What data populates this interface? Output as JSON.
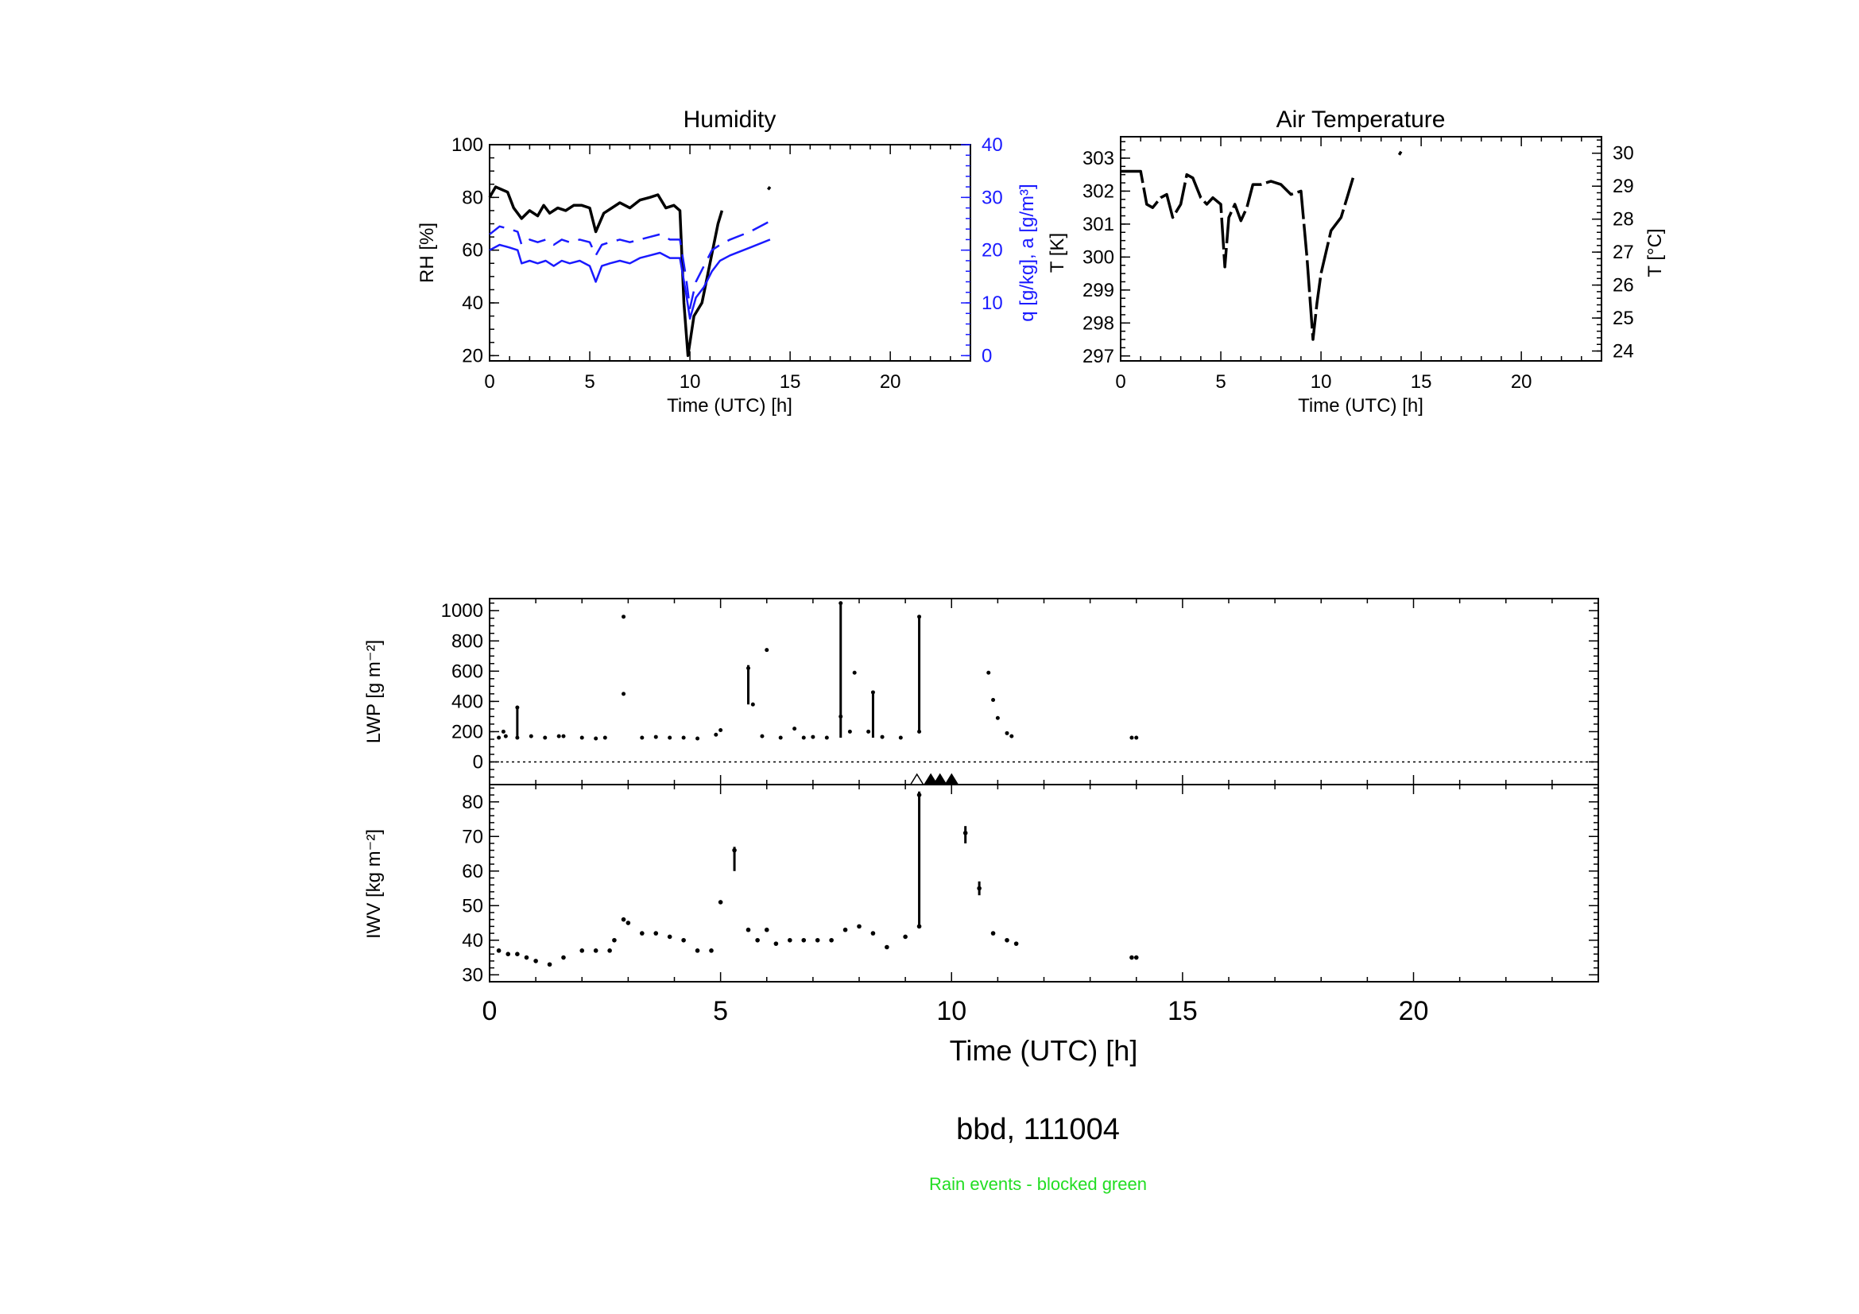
{
  "figure": {
    "caption": "bbd, 111004",
    "note": "Rain events - blocked green"
  },
  "chart_data": [
    {
      "id": "humidity",
      "type": "line",
      "title": "Humidity",
      "xlabel": "Time (UTC) [h]",
      "ylabel": "RH [%]",
      "ylabel_right": "q [g/kg], a [g/m³]",
      "xlim": [
        0,
        24
      ],
      "ylim": [
        18,
        100
      ],
      "ylim_right": [
        0,
        40
      ],
      "x_ticks": [
        0,
        5,
        10,
        15,
        20
      ],
      "y_ticks": [
        20,
        40,
        60,
        80,
        100
      ],
      "y_ticks_right": [
        0,
        10,
        20,
        30,
        40
      ],
      "colors": {
        "rh": "#000000",
        "q": "#1a1aff",
        "a": "#1a1aff"
      },
      "series": [
        {
          "key": "rh",
          "axis": "left",
          "style": "solid-black",
          "x": [
            0,
            0.3,
            0.6,
            0.9,
            1.2,
            1.6,
            2.0,
            2.4,
            2.7,
            3.0,
            3.4,
            3.8,
            4.2,
            4.6,
            5.0,
            5.3,
            5.7,
            6.1,
            6.5,
            7.0,
            7.5,
            8.0,
            8.4,
            8.8,
            9.2,
            9.5,
            9.7,
            9.9,
            10.2,
            10.6,
            11.0,
            11.4,
            11.6
          ],
          "y": [
            80,
            84,
            83,
            82,
            76,
            72,
            75,
            73,
            77,
            74,
            76,
            75,
            77,
            77,
            76,
            67,
            74,
            76,
            78,
            76,
            79,
            80,
            81,
            76,
            77,
            75,
            40,
            20,
            35,
            40,
            55,
            70,
            75
          ]
        },
        {
          "key": "rh_late",
          "axis": "left",
          "style": "solid-black",
          "x": [
            13.9,
            14.0
          ],
          "y": [
            83,
            84
          ]
        },
        {
          "key": "q",
          "axis": "right",
          "style": "dashed-blue",
          "x": [
            0,
            0.5,
            1.0,
            1.4,
            1.6,
            2.0,
            2.4,
            2.8,
            3.2,
            3.6,
            4.0,
            4.5,
            5.0,
            5.3,
            5.6,
            6.0,
            6.5,
            7.0,
            7.5,
            8.0,
            8.5,
            9.0,
            9.5,
            9.8,
            10.0,
            10.3,
            10.7,
            11.1,
            11.5,
            12.0,
            13.0,
            14.0
          ],
          "y": [
            23,
            24.5,
            24,
            23.5,
            21,
            22,
            21.5,
            22,
            21,
            22,
            21.5,
            22,
            21.5,
            19,
            21,
            21.5,
            22,
            21.5,
            22,
            22.5,
            23,
            22,
            22,
            15,
            9,
            14,
            17,
            20,
            21,
            22,
            23.5,
            25.5
          ]
        },
        {
          "key": "a",
          "axis": "right",
          "style": "solid-blue",
          "x": [
            0,
            0.5,
            1.0,
            1.4,
            1.6,
            2.0,
            2.4,
            2.8,
            3.2,
            3.6,
            4.0,
            4.5,
            5.0,
            5.3,
            5.6,
            6.0,
            6.5,
            7.0,
            7.5,
            8.0,
            8.5,
            9.0,
            9.5,
            9.8,
            10.0,
            10.3,
            10.7,
            11.1,
            11.5,
            12.0,
            13.0,
            14.0
          ],
          "y": [
            20,
            21,
            20.5,
            20,
            17.5,
            18,
            17.5,
            18,
            17,
            18,
            17.5,
            18,
            17,
            14,
            17,
            17.5,
            18,
            17.5,
            18.5,
            19,
            19.5,
            18.5,
            18.5,
            12,
            7,
            11,
            13,
            16,
            18,
            19,
            20.5,
            22
          ]
        }
      ]
    },
    {
      "id": "air-temperature",
      "type": "line",
      "title": "Air Temperature",
      "xlabel": "Time (UTC) [h]",
      "ylabel": "T [K]",
      "ylabel_right": "T [°C]",
      "xlim": [
        0,
        24
      ],
      "ylim": [
        296.85,
        303.65
      ],
      "x_ticks": [
        0,
        5,
        10,
        15,
        20
      ],
      "y_ticks": [
        297,
        298,
        299,
        300,
        301,
        302,
        303
      ],
      "y_ticks_right": [
        24,
        25,
        26,
        27,
        28,
        29,
        30
      ],
      "series": [
        {
          "key": "t",
          "x": [
            0,
            0.5,
            1.0,
            1.3,
            1.6,
            2.0,
            2.3,
            2.6,
            3.0,
            3.3,
            3.6,
            4.0,
            4.3,
            4.6,
            5.0,
            5.2,
            5.4,
            5.7,
            6.0,
            6.3,
            6.6,
            7.0,
            7.5,
            8.0,
            8.5,
            9.0,
            9.3,
            9.6,
            9.8,
            10.0,
            10.5,
            11.0,
            11.3,
            11.6
          ],
          "y": [
            302.6,
            302.6,
            302.6,
            301.6,
            301.5,
            301.8,
            301.9,
            301.2,
            301.6,
            302.5,
            302.4,
            301.8,
            301.6,
            301.8,
            301.6,
            299.7,
            301.2,
            301.6,
            301.1,
            301.5,
            302.2,
            302.2,
            302.3,
            302.2,
            301.9,
            302.0,
            300.0,
            297.5,
            298.6,
            299.5,
            300.8,
            301.2,
            301.8,
            302.4
          ]
        },
        {
          "key": "t_late",
          "x": [
            13.9,
            14.0
          ],
          "y": [
            303.1,
            303.2
          ]
        }
      ]
    },
    {
      "id": "lwp",
      "type": "scatter",
      "ylabel": "LWP [g m⁻²]",
      "xlim": [
        0,
        24
      ],
      "ylim": [
        -150,
        1080
      ],
      "y_ticks": [
        0,
        200,
        400,
        600,
        800,
        1000
      ],
      "baseline": 0,
      "points": [
        [
          0.2,
          160
        ],
        [
          0.3,
          200
        ],
        [
          0.35,
          170
        ],
        [
          0.6,
          160
        ],
        [
          0.6,
          360
        ],
        [
          0.9,
          170
        ],
        [
          1.2,
          160
        ],
        [
          1.5,
          170
        ],
        [
          1.6,
          170
        ],
        [
          2.0,
          160
        ],
        [
          2.3,
          155
        ],
        [
          2.5,
          160
        ],
        [
          2.9,
          960
        ],
        [
          2.9,
          450
        ],
        [
          3.3,
          160
        ],
        [
          3.6,
          165
        ],
        [
          3.9,
          160
        ],
        [
          4.2,
          160
        ],
        [
          4.5,
          155
        ],
        [
          4.9,
          180
        ],
        [
          5.0,
          210
        ],
        [
          5.6,
          620
        ],
        [
          5.7,
          380
        ],
        [
          5.9,
          170
        ],
        [
          6.0,
          740
        ],
        [
          6.3,
          160
        ],
        [
          6.6,
          220
        ],
        [
          6.8,
          160
        ],
        [
          7.0,
          165
        ],
        [
          7.3,
          160
        ],
        [
          7.6,
          1050
        ],
        [
          7.6,
          300
        ],
        [
          7.8,
          200
        ],
        [
          7.9,
          590
        ],
        [
          8.2,
          200
        ],
        [
          8.3,
          460
        ],
        [
          8.5,
          165
        ],
        [
          8.9,
          160
        ],
        [
          9.3,
          960
        ],
        [
          9.3,
          200
        ],
        [
          10.8,
          590
        ],
        [
          10.9,
          410
        ],
        [
          11.0,
          290
        ],
        [
          11.2,
          190
        ],
        [
          11.3,
          170
        ],
        [
          13.9,
          160
        ],
        [
          14.0,
          160
        ]
      ],
      "spikes": [
        {
          "x": 0.6,
          "y0": 150,
          "y1": 370
        },
        {
          "x": 5.6,
          "y0": 380,
          "y1": 640
        },
        {
          "x": 7.6,
          "y0": 160,
          "y1": 1050
        },
        {
          "x": 8.3,
          "y0": 160,
          "y1": 470
        },
        {
          "x": 9.3,
          "y0": 200,
          "y1": 960
        }
      ]
    },
    {
      "id": "iwv",
      "type": "scatter",
      "ylabel": "IWV [kg m⁻²]",
      "xlabel": "Time (UTC) [h]",
      "xlim": [
        0,
        24
      ],
      "ylim": [
        28,
        85
      ],
      "x_ticks": [
        0,
        5,
        10,
        15,
        20
      ],
      "y_ticks": [
        30,
        40,
        50,
        60,
        70,
        80
      ],
      "points": [
        [
          0.2,
          37
        ],
        [
          0.4,
          36
        ],
        [
          0.6,
          36
        ],
        [
          0.8,
          35
        ],
        [
          1.0,
          34
        ],
        [
          1.3,
          33
        ],
        [
          1.6,
          35
        ],
        [
          2.0,
          37
        ],
        [
          2.3,
          37
        ],
        [
          2.6,
          37
        ],
        [
          2.7,
          40
        ],
        [
          2.9,
          46
        ],
        [
          3.0,
          45
        ],
        [
          3.3,
          42
        ],
        [
          3.6,
          42
        ],
        [
          3.9,
          41
        ],
        [
          4.2,
          40
        ],
        [
          4.5,
          37
        ],
        [
          4.8,
          37
        ],
        [
          5.0,
          51
        ],
        [
          5.3,
          66
        ],
        [
          5.6,
          43
        ],
        [
          5.8,
          40
        ],
        [
          6.0,
          43
        ],
        [
          6.2,
          39
        ],
        [
          6.5,
          40
        ],
        [
          6.8,
          40
        ],
        [
          7.1,
          40
        ],
        [
          7.4,
          40
        ],
        [
          7.7,
          43
        ],
        [
          8.0,
          44
        ],
        [
          8.3,
          42
        ],
        [
          8.6,
          38
        ],
        [
          9.0,
          41
        ],
        [
          9.3,
          44
        ],
        [
          9.3,
          82
        ],
        [
          10.3,
          71
        ],
        [
          10.6,
          55
        ],
        [
          10.9,
          42
        ],
        [
          11.2,
          40
        ],
        [
          11.4,
          39
        ],
        [
          13.9,
          35
        ],
        [
          14.0,
          35
        ]
      ],
      "spikes": [
        {
          "x": 9.3,
          "y0": 44,
          "y1": 83
        },
        {
          "x": 5.3,
          "y0": 60,
          "y1": 67
        },
        {
          "x": 10.3,
          "y0": 68,
          "y1": 73
        },
        {
          "x": 10.6,
          "y0": 53,
          "y1": 57
        }
      ],
      "rain_markers": [
        {
          "x": 9.25,
          "filled": false
        },
        {
          "x": 9.55,
          "filled": true
        },
        {
          "x": 9.75,
          "filled": true
        },
        {
          "x": 10.0,
          "filled": true
        }
      ]
    }
  ]
}
